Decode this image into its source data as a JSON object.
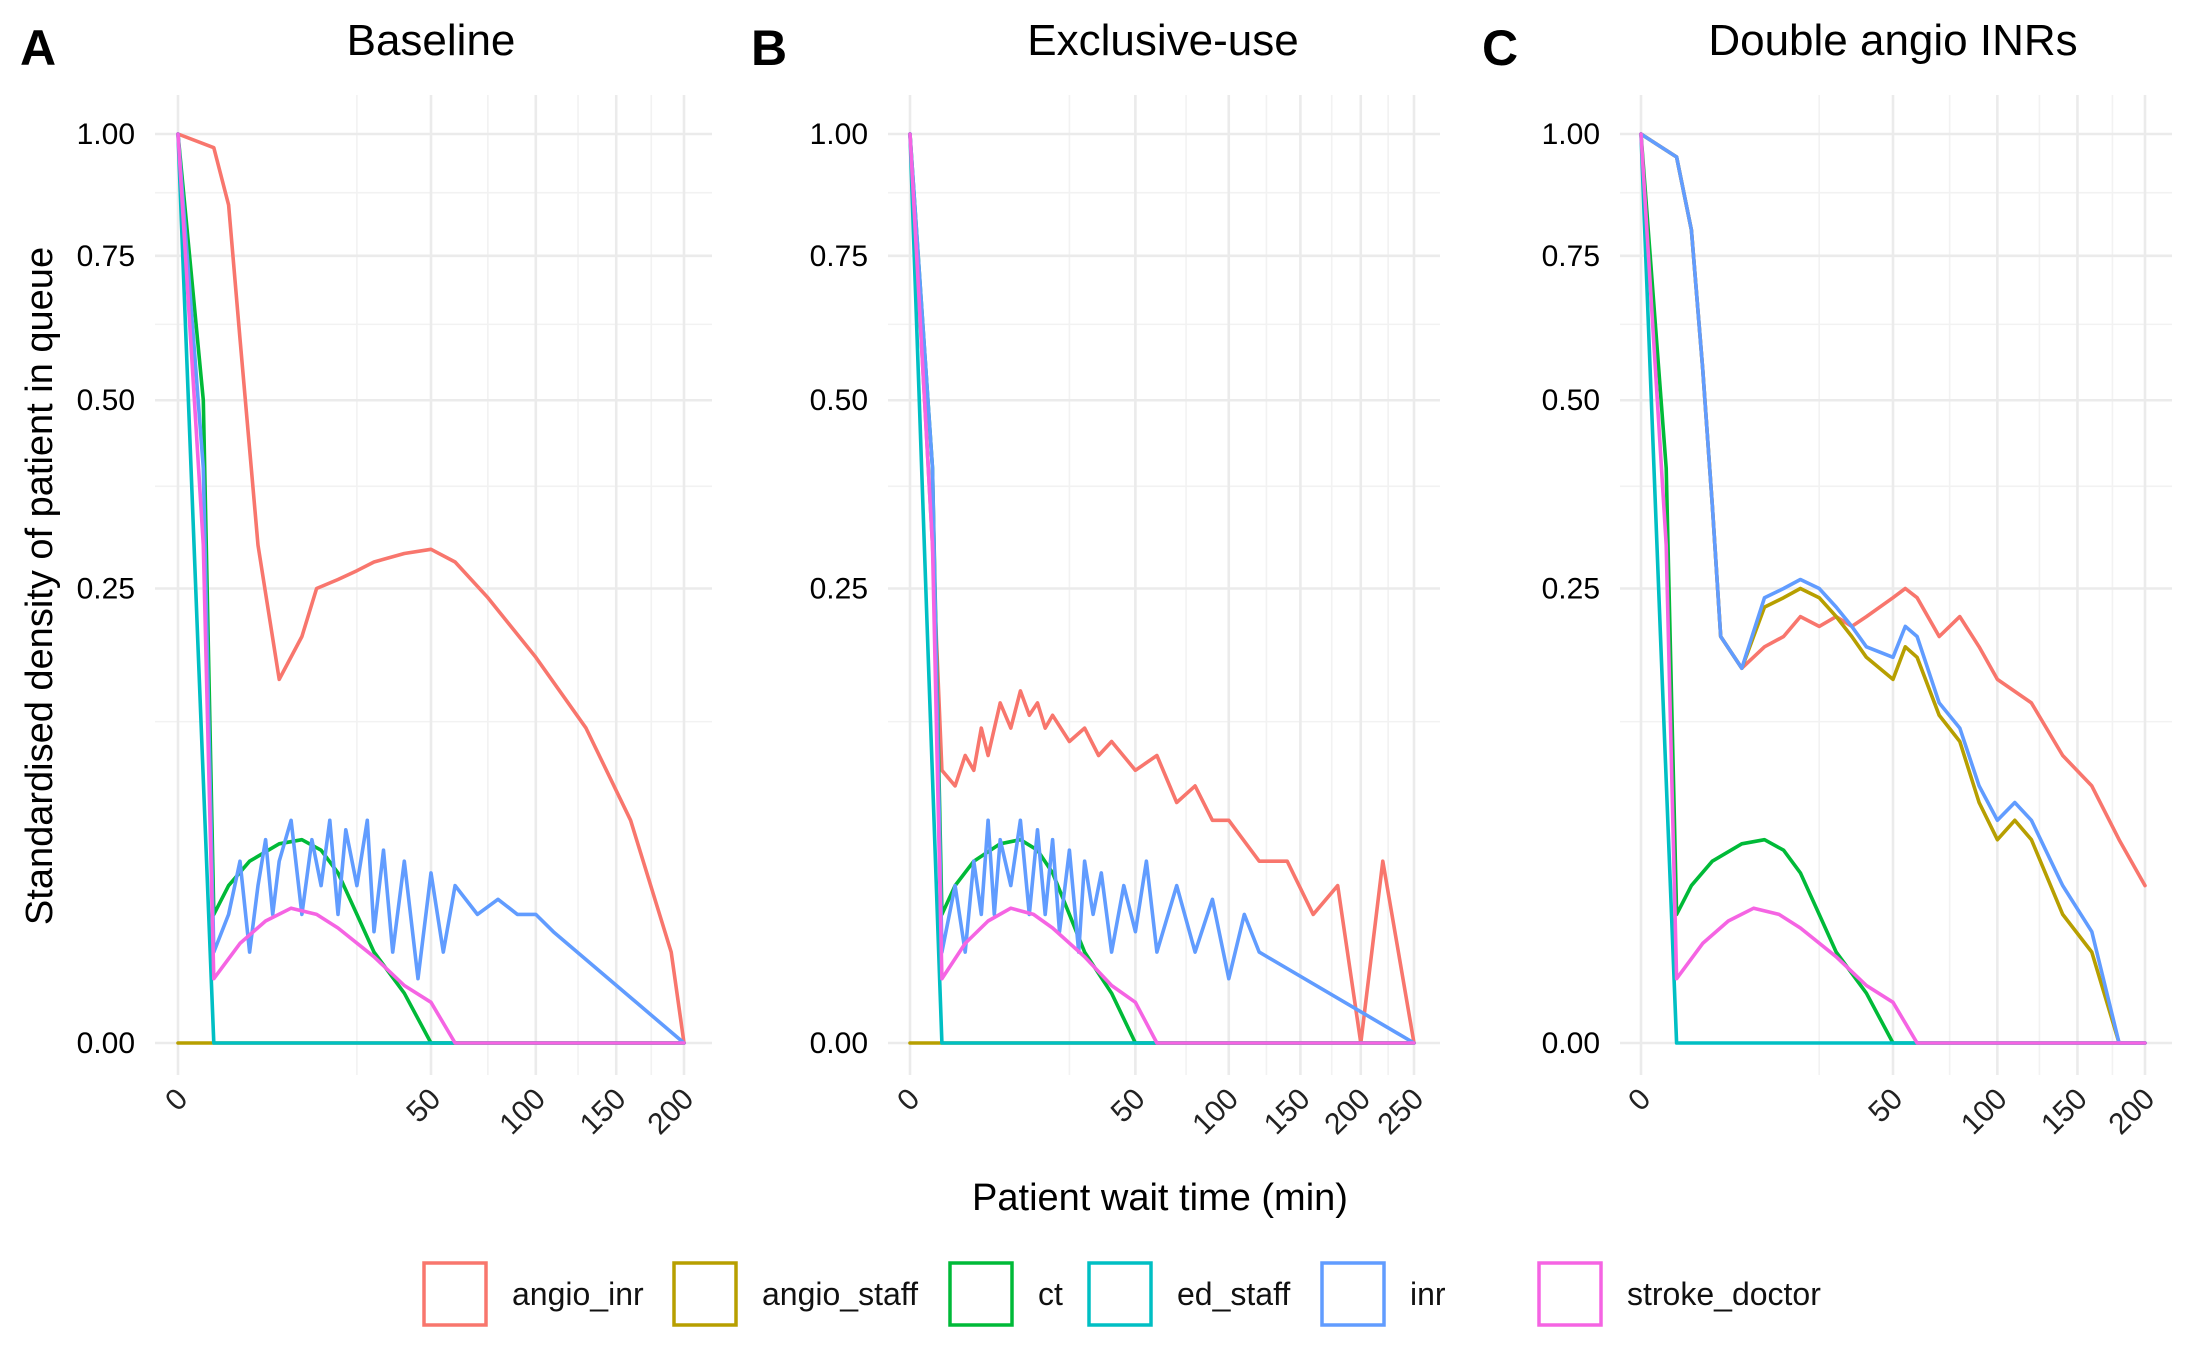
{
  "figure": {
    "y_axis_title": "Standardised density of patient in queue",
    "x_axis_title": "Patient wait time (min)"
  },
  "colors": {
    "angio_inr": "#F8766D",
    "angio_staff": "#B79F00",
    "ct": "#00BA38",
    "ed_staff": "#00BFC4",
    "inr": "#619CFF",
    "stroke_doctor": "#F564E3"
  },
  "legend": [
    "angio_inr",
    "angio_staff",
    "ct",
    "ed_staff",
    "inr",
    "stroke_doctor"
  ],
  "chart_data": [
    {
      "type": "line",
      "panel": "A",
      "title": "Baseline",
      "x_scale": "sqrt",
      "xlim": [
        0,
        200
      ],
      "ylim": [
        0,
        1
      ],
      "x_ticks": [
        0,
        50,
        100,
        150,
        200
      ],
      "y_ticks": [
        "0.00",
        "0.25",
        "0.50",
        "0.75",
        "1.00"
      ],
      "series": [
        {
          "name": "angio_inr",
          "x": [
            0,
            1,
            2,
            3,
            5,
            8,
            12,
            15,
            20,
            25,
            30,
            40,
            50,
            60,
            75,
            100,
            130,
            160,
            190,
            200
          ],
          "y": [
            1.0,
            0.97,
            0.85,
            0.6,
            0.3,
            0.16,
            0.2,
            0.25,
            0.26,
            0.27,
            0.28,
            0.29,
            0.295,
            0.28,
            0.24,
            0.18,
            0.12,
            0.06,
            0.01,
            0.0
          ]
        },
        {
          "name": "angio_staff",
          "x": [
            0,
            200
          ],
          "y": [
            0,
            0
          ]
        },
        {
          "name": "ct",
          "x": [
            0,
            0.5,
            1,
            2,
            4,
            8,
            12,
            16,
            20,
            25,
            30,
            40,
            50,
            200
          ],
          "y": [
            1.0,
            0.5,
            0.02,
            0.03,
            0.04,
            0.048,
            0.05,
            0.045,
            0.035,
            0.02,
            0.01,
            0.003,
            0,
            0
          ]
        },
        {
          "name": "ed_staff",
          "x": [
            0,
            0.3,
            1,
            200
          ],
          "y": [
            1.0,
            0.2,
            0,
            0
          ]
        },
        {
          "name": "inr",
          "x": [
            0,
            0.5,
            1,
            2,
            3,
            4,
            5,
            6,
            7,
            8,
            10,
            12,
            14,
            16,
            18,
            20,
            22,
            25,
            28,
            30,
            33,
            36,
            40,
            45,
            50,
            55,
            60,
            70,
            80,
            90,
            100,
            110,
            200
          ],
          "y": [
            1.0,
            0.4,
            0.01,
            0.02,
            0.04,
            0.01,
            0.03,
            0.05,
            0.02,
            0.04,
            0.06,
            0.02,
            0.05,
            0.03,
            0.06,
            0.02,
            0.055,
            0.03,
            0.06,
            0.015,
            0.045,
            0.01,
            0.04,
            0.005,
            0.035,
            0.01,
            0.03,
            0.02,
            0.025,
            0.02,
            0.02,
            0.015,
            0
          ]
        },
        {
          "name": "stroke_doctor",
          "x": [
            0,
            0.5,
            1,
            3,
            6,
            10,
            15,
            20,
            30,
            40,
            50,
            60,
            200
          ],
          "y": [
            1.0,
            0.3,
            0.005,
            0.012,
            0.018,
            0.022,
            0.02,
            0.016,
            0.009,
            0.004,
            0.002,
            0,
            0
          ]
        }
      ]
    },
    {
      "type": "line",
      "panel": "B",
      "title": "Exclusive-use",
      "x_scale": "sqrt",
      "xlim": [
        0,
        250
      ],
      "ylim": [
        0,
        1
      ],
      "x_ticks": [
        0,
        50,
        100,
        150,
        200,
        250
      ],
      "y_ticks": [
        "0.00",
        "0.25",
        "0.50",
        "0.75",
        "1.00"
      ],
      "series": [
        {
          "name": "angio_inr",
          "x": [
            0,
            0.5,
            1,
            2,
            3,
            4,
            5,
            6,
            8,
            10,
            12,
            14,
            16,
            18,
            20,
            25,
            30,
            35,
            40,
            50,
            60,
            70,
            80,
            90,
            100,
            120,
            140,
            160,
            180,
            200,
            220,
            250
          ],
          "y": [
            1.0,
            0.3,
            0.09,
            0.08,
            0.1,
            0.09,
            0.12,
            0.1,
            0.14,
            0.12,
            0.15,
            0.13,
            0.14,
            0.12,
            0.13,
            0.11,
            0.12,
            0.1,
            0.11,
            0.09,
            0.1,
            0.07,
            0.08,
            0.06,
            0.06,
            0.04,
            0.04,
            0.02,
            0.03,
            0.0,
            0.04,
            0
          ]
        },
        {
          "name": "angio_staff",
          "x": [
            0,
            250
          ],
          "y": [
            0,
            0
          ]
        },
        {
          "name": "ct",
          "x": [
            0,
            0.5,
            1,
            2,
            4,
            8,
            12,
            16,
            20,
            25,
            30,
            40,
            50,
            250
          ],
          "y": [
            1.0,
            0.4,
            0.02,
            0.03,
            0.04,
            0.048,
            0.05,
            0.045,
            0.035,
            0.02,
            0.01,
            0.003,
            0,
            0
          ]
        },
        {
          "name": "ed_staff",
          "x": [
            0,
            0.3,
            1,
            250
          ],
          "y": [
            1.0,
            0.2,
            0,
            0
          ]
        },
        {
          "name": "inr",
          "x": [
            0,
            0.5,
            1,
            2,
            3,
            4,
            5,
            6,
            7,
            8,
            10,
            12,
            14,
            16,
            18,
            20,
            22,
            25,
            28,
            30,
            33,
            36,
            40,
            45,
            50,
            55,
            60,
            70,
            80,
            90,
            100,
            110,
            120,
            250
          ],
          "y": [
            1.0,
            0.4,
            0.01,
            0.03,
            0.01,
            0.04,
            0.02,
            0.06,
            0.02,
            0.05,
            0.03,
            0.06,
            0.02,
            0.055,
            0.02,
            0.05,
            0.015,
            0.045,
            0.01,
            0.04,
            0.02,
            0.035,
            0.01,
            0.03,
            0.015,
            0.04,
            0.01,
            0.03,
            0.01,
            0.025,
            0.005,
            0.02,
            0.01,
            0
          ]
        },
        {
          "name": "stroke_doctor",
          "x": [
            0,
            0.5,
            1,
            3,
            6,
            10,
            15,
            20,
            30,
            40,
            50,
            60,
            250
          ],
          "y": [
            1.0,
            0.3,
            0.005,
            0.012,
            0.018,
            0.022,
            0.02,
            0.016,
            0.009,
            0.004,
            0.002,
            0,
            0
          ]
        }
      ]
    },
    {
      "type": "line",
      "panel": "C",
      "title": "Double angio INRs",
      "x_scale": "sqrt",
      "xlim": [
        0,
        200
      ],
      "ylim": [
        0,
        1
      ],
      "x_ticks": [
        0,
        50,
        100,
        150,
        200
      ],
      "y_ticks": [
        "0.00",
        "0.25",
        "0.50",
        "0.75",
        "1.00"
      ],
      "series": [
        {
          "name": "angio_inr",
          "x": [
            0,
            1,
            2,
            3,
            4,
            5,
            8,
            12,
            16,
            20,
            25,
            30,
            35,
            40,
            50,
            55,
            60,
            70,
            80,
            90,
            100,
            120,
            140,
            160,
            180,
            200
          ],
          "y": [
            1.0,
            0.95,
            0.8,
            0.55,
            0.35,
            0.2,
            0.17,
            0.19,
            0.2,
            0.22,
            0.21,
            0.22,
            0.21,
            0.22,
            0.24,
            0.25,
            0.24,
            0.2,
            0.22,
            0.19,
            0.16,
            0.14,
            0.1,
            0.08,
            0.05,
            0.03
          ]
        },
        {
          "name": "angio_staff",
          "x": [
            0,
            1,
            2,
            3,
            4,
            5,
            8,
            12,
            16,
            20,
            25,
            30,
            35,
            40,
            50,
            55,
            60,
            70,
            80,
            90,
            100,
            110,
            120,
            140,
            160,
            180,
            200
          ],
          "y": [
            1.0,
            0.95,
            0.8,
            0.55,
            0.35,
            0.2,
            0.17,
            0.23,
            0.24,
            0.25,
            0.24,
            0.22,
            0.2,
            0.18,
            0.16,
            0.19,
            0.18,
            0.13,
            0.11,
            0.07,
            0.05,
            0.06,
            0.05,
            0.02,
            0.01,
            0,
            0
          ]
        },
        {
          "name": "ct",
          "x": [
            0,
            0.5,
            1,
            2,
            4,
            8,
            12,
            16,
            20,
            25,
            30,
            40,
            50,
            200
          ],
          "y": [
            1.0,
            0.4,
            0.02,
            0.03,
            0.04,
            0.048,
            0.05,
            0.045,
            0.035,
            0.02,
            0.01,
            0.003,
            0,
            0
          ]
        },
        {
          "name": "ed_staff",
          "x": [
            0,
            0.3,
            1,
            200
          ],
          "y": [
            1.0,
            0.2,
            0,
            0
          ]
        },
        {
          "name": "inr",
          "x": [
            0,
            1,
            2,
            3,
            4,
            5,
            8,
            12,
            16,
            20,
            25,
            30,
            35,
            40,
            50,
            55,
            60,
            70,
            80,
            90,
            100,
            110,
            120,
            140,
            160,
            180,
            200
          ],
          "y": [
            1.0,
            0.95,
            0.8,
            0.55,
            0.35,
            0.2,
            0.17,
            0.24,
            0.25,
            0.26,
            0.25,
            0.23,
            0.21,
            0.19,
            0.18,
            0.21,
            0.2,
            0.14,
            0.12,
            0.08,
            0.06,
            0.07,
            0.06,
            0.03,
            0.015,
            0,
            0
          ]
        },
        {
          "name": "stroke_doctor",
          "x": [
            0,
            0.5,
            1,
            3,
            6,
            10,
            15,
            20,
            30,
            40,
            50,
            60,
            200
          ],
          "y": [
            1.0,
            0.3,
            0.005,
            0.012,
            0.018,
            0.022,
            0.02,
            0.016,
            0.009,
            0.004,
            0.002,
            0,
            0
          ]
        }
      ]
    }
  ]
}
